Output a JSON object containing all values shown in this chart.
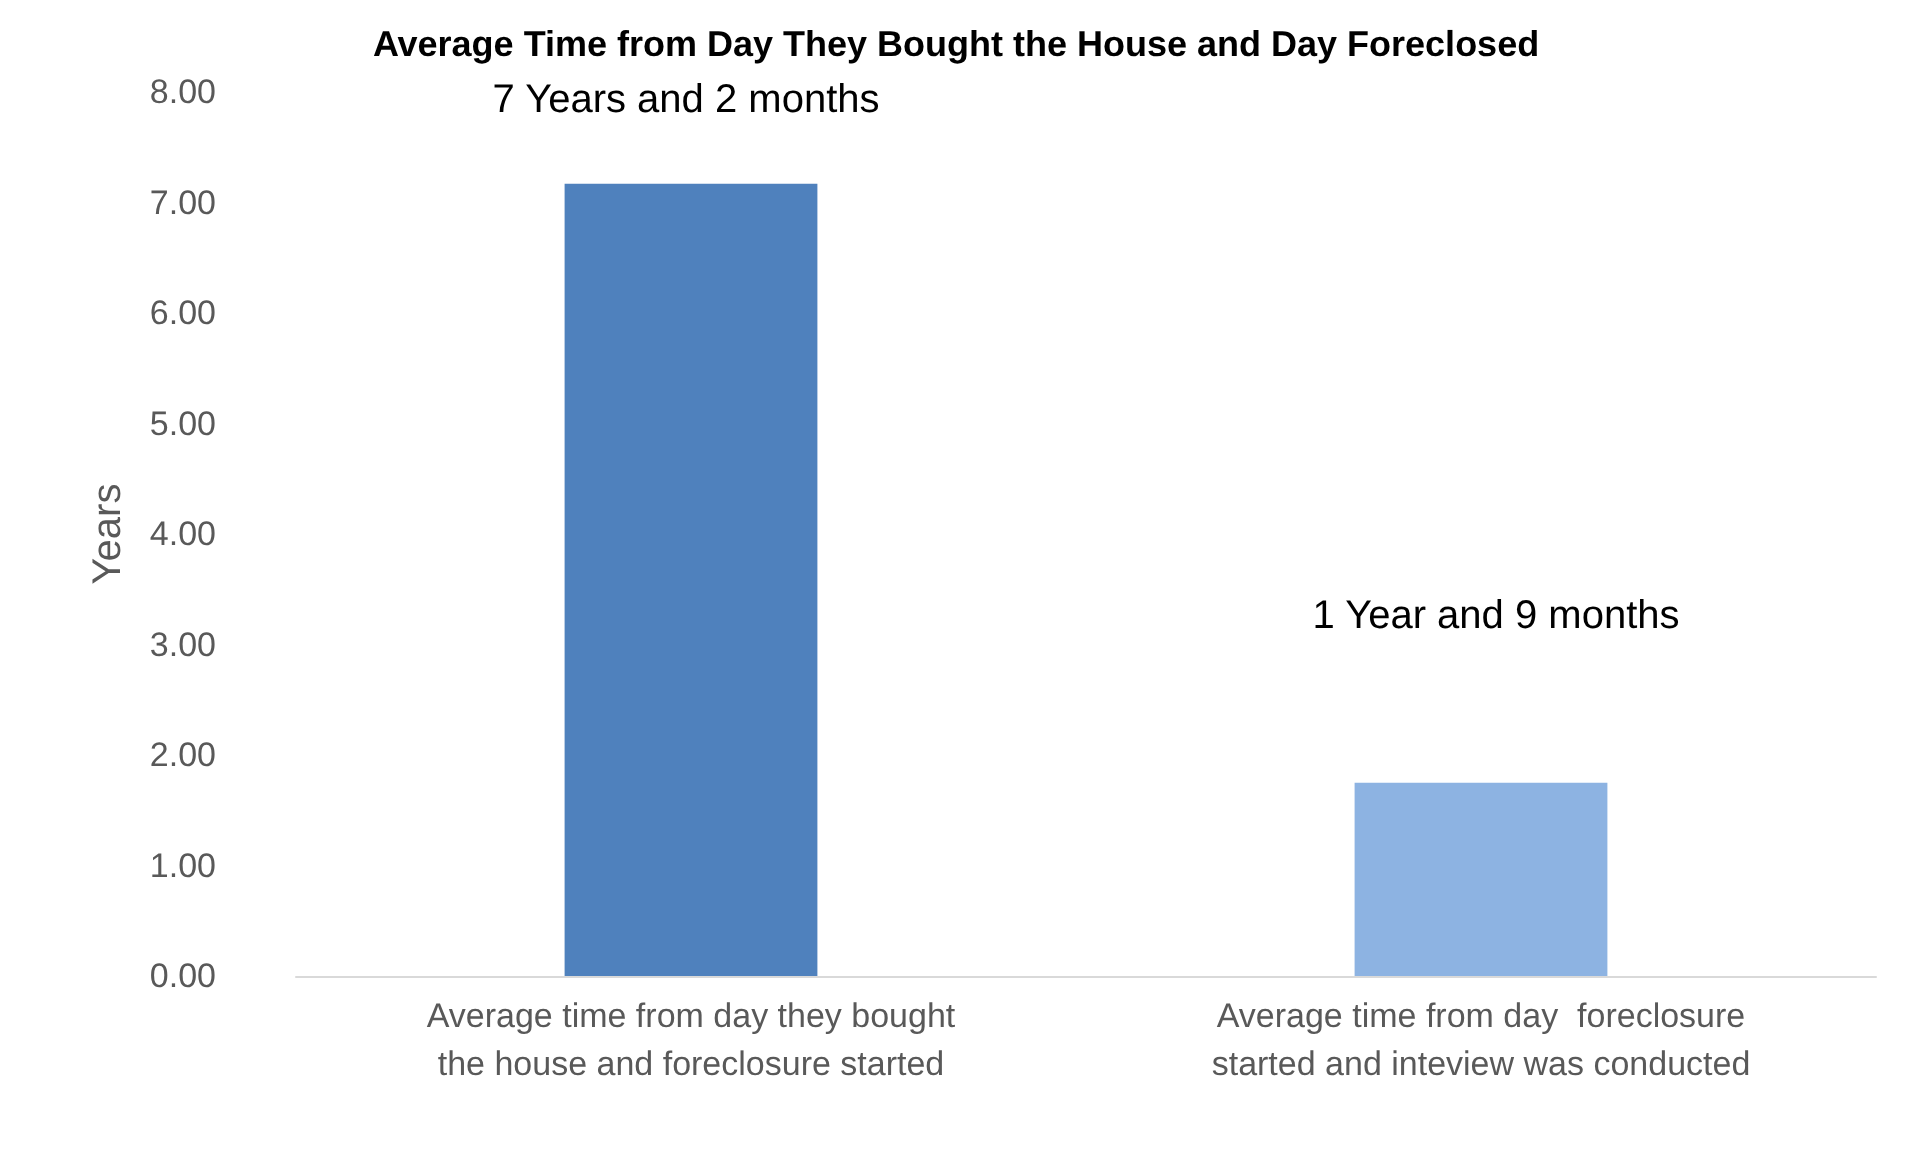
{
  "chart_data": {
    "type": "bar",
    "title": "Average Time from Day They Bought the House and Day Foreclosed",
    "ylabel": "Years",
    "categories": [
      "Average time from day they bought\nthe house and foreclosure started",
      "Average time from day  foreclosure\nstarted and inteview was conducted"
    ],
    "values": [
      7.17,
      1.75
    ],
    "colors": [
      "#4f81bd",
      "#8db3e2"
    ],
    "ylim": [
      0,
      8
    ],
    "yticks": [
      {
        "value": 0,
        "label": "0.00"
      },
      {
        "value": 1,
        "label": "1.00"
      },
      {
        "value": 2,
        "label": "2.00"
      },
      {
        "value": 3,
        "label": "3.00"
      },
      {
        "value": 4,
        "label": "4.00"
      },
      {
        "value": 5,
        "label": "5.00"
      },
      {
        "value": 6,
        "label": "6.00"
      },
      {
        "value": 7,
        "label": "7.00"
      },
      {
        "value": 8,
        "label": "8.00"
      }
    ],
    "annotations": [
      "7 Years and 2 months",
      "1 Year and 9 months"
    ],
    "grid": false
  }
}
